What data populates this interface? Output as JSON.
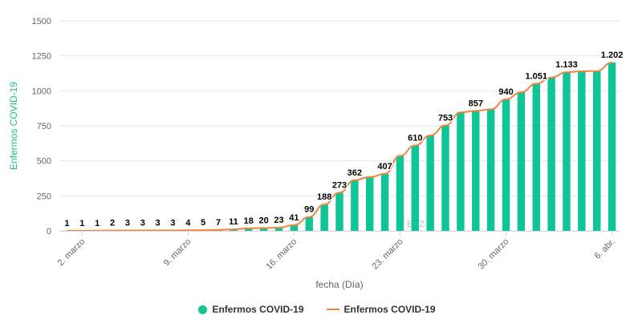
{
  "colors": {
    "bar": "#0fc496",
    "line": "#f0853f",
    "grid": "#e6e6e6",
    "axis_title": "#1abf95"
  },
  "legend": {
    "bar_label": "Enfermos COVID-19",
    "line_label": "Enfermos COVID-19"
  },
  "watermark": "EDZ",
  "chart_data": {
    "type": "bar",
    "xlabel": "fecha (Día)",
    "ylabel": "Enfermos COVID-19",
    "ylim": [
      0,
      1500
    ],
    "yticks": [
      "0",
      "250",
      "500",
      "750",
      "1000",
      "1250",
      "1500"
    ],
    "ytick_values": [
      0,
      250,
      500,
      750,
      1000,
      1250,
      1500
    ],
    "categories": [
      "1 mar",
      "2 mar",
      "3 mar",
      "4 mar",
      "5 mar",
      "6 mar",
      "7 mar",
      "8 mar",
      "9 mar",
      "10 mar",
      "11 mar",
      "12 mar",
      "13 mar",
      "14 mar",
      "15 mar",
      "16 mar",
      "17 mar",
      "18 mar",
      "19 mar",
      "20 mar",
      "21 mar",
      "22 mar",
      "23 mar",
      "24 mar",
      "25 mar",
      "26 mar",
      "27 mar",
      "28 mar",
      "29 mar",
      "30 mar",
      "31 mar",
      "1 abr",
      "2 abr",
      "3 abr",
      "4 abr",
      "5 abr",
      "6 abr"
    ],
    "xtick_labels": [
      {
        "index": 1,
        "label": "2. marzo"
      },
      {
        "index": 8,
        "label": "9. marzo"
      },
      {
        "index": 15,
        "label": "16. marzo"
      },
      {
        "index": 22,
        "label": "23. marzo"
      },
      {
        "index": 29,
        "label": "30. marzo"
      },
      {
        "index": 36,
        "label": "6. abr."
      }
    ],
    "series": [
      {
        "name": "Enfermos COVID-19",
        "type": "bar",
        "values": [
          1,
          1,
          1,
          2,
          3,
          3,
          3,
          3,
          4,
          5,
          7,
          11,
          18,
          20,
          23,
          41,
          99,
          188,
          273,
          362,
          384,
          407,
          536,
          610,
          681,
          753,
          846,
          857,
          868,
          940,
          990,
          1051,
          1096,
          1133,
          1140,
          1141,
          1202
        ]
      },
      {
        "name": "Enfermos COVID-19",
        "type": "line",
        "values": [
          1,
          1,
          1,
          2,
          3,
          3,
          3,
          3,
          4,
          5,
          7,
          11,
          18,
          20,
          23,
          41,
          99,
          188,
          273,
          362,
          384,
          407,
          536,
          610,
          681,
          753,
          846,
          857,
          868,
          940,
          990,
          1051,
          1096,
          1133,
          1140,
          1141,
          1202
        ]
      }
    ],
    "data_labels": [
      {
        "index": 0,
        "text": "1"
      },
      {
        "index": 1,
        "text": "1"
      },
      {
        "index": 2,
        "text": "1"
      },
      {
        "index": 3,
        "text": "2"
      },
      {
        "index": 4,
        "text": "3"
      },
      {
        "index": 5,
        "text": "3"
      },
      {
        "index": 6,
        "text": "3"
      },
      {
        "index": 7,
        "text": "3"
      },
      {
        "index": 8,
        "text": "4"
      },
      {
        "index": 9,
        "text": "5"
      },
      {
        "index": 10,
        "text": "7"
      },
      {
        "index": 11,
        "text": "11"
      },
      {
        "index": 12,
        "text": "18"
      },
      {
        "index": 13,
        "text": "20"
      },
      {
        "index": 14,
        "text": "23"
      },
      {
        "index": 15,
        "text": "41"
      },
      {
        "index": 16,
        "text": "99"
      },
      {
        "index": 17,
        "text": "188"
      },
      {
        "index": 18,
        "text": "273"
      },
      {
        "index": 19,
        "text": "362"
      },
      {
        "index": 21,
        "text": "407"
      },
      {
        "index": 23,
        "text": "610"
      },
      {
        "index": 25,
        "text": "753"
      },
      {
        "index": 27,
        "text": "857"
      },
      {
        "index": 29,
        "text": "940"
      },
      {
        "index": 31,
        "text": "1.051"
      },
      {
        "index": 33,
        "text": "1.133"
      },
      {
        "index": 36,
        "text": "1.202"
      }
    ],
    "grid": true,
    "legend_position": "bottom-center"
  }
}
